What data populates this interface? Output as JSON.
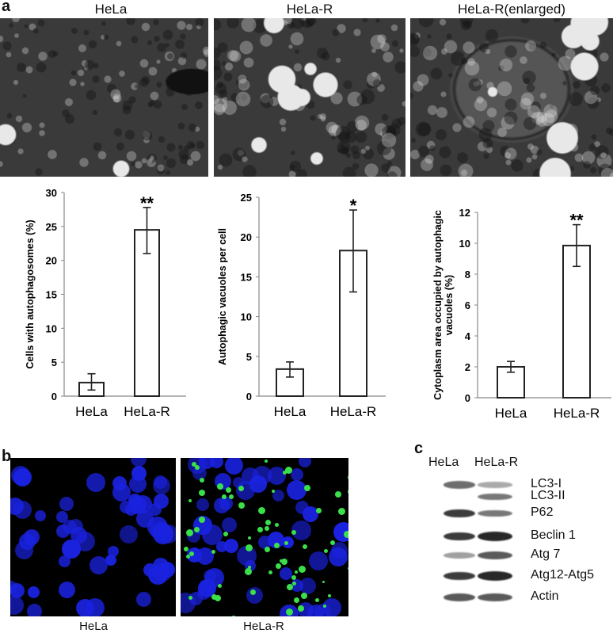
{
  "panel_labels": {
    "a": "a",
    "b": "b",
    "c": "c"
  },
  "panel_a": {
    "micrograph_titles": [
      "HeLa",
      "HeLa-R",
      "HeLa-R(enlarged)"
    ]
  },
  "chart_data": [
    {
      "type": "bar",
      "categories": [
        "HeLa",
        "HeLa-R"
      ],
      "values": [
        2.0,
        24.5
      ],
      "error_low": [
        0.9,
        21.0
      ],
      "error_high": [
        3.3,
        27.8
      ],
      "annotations": [
        "",
        "**"
      ],
      "ylabel": "Cells with autophagosomes (%)",
      "ylim": [
        0,
        30
      ],
      "yticks": [
        0,
        5,
        10,
        15,
        20,
        25,
        30
      ],
      "grid": false
    },
    {
      "type": "bar",
      "categories": [
        "HeLa",
        "HeLa-R"
      ],
      "values": [
        3.4,
        18.3
      ],
      "error_low": [
        2.4,
        13.1
      ],
      "error_high": [
        4.3,
        23.4
      ],
      "annotations": [
        "",
        "*"
      ],
      "ylabel": "Autophagic vacuoles per cell",
      "ylim": [
        0,
        25
      ],
      "yticks": [
        0,
        5,
        10,
        15,
        20,
        25
      ],
      "grid": false
    },
    {
      "type": "bar",
      "categories": [
        "HeLa",
        "HeLa-R"
      ],
      "values": [
        2.0,
        9.85
      ],
      "error_low": [
        1.65,
        8.5
      ],
      "error_high": [
        2.35,
        11.2
      ],
      "annotations": [
        "",
        "**"
      ],
      "ylabel": "Cytoplasm area occupied by autophagic vacuoles (%)",
      "ylabel_lines": [
        "Cytoplasm area occupied by autophagic",
        "vacuoles (%)"
      ],
      "ylim": [
        0,
        12
      ],
      "yticks": [
        0,
        2,
        4,
        6,
        8,
        10,
        12
      ],
      "grid": false
    }
  ],
  "panel_b": {
    "image_labels": [
      "HeLa",
      "HeLa-R"
    ],
    "colors": {
      "nuclei": "#1a22e0",
      "autophagosome": "#39e04a"
    }
  },
  "panel_c": {
    "lane_labels": [
      "HeLa",
      "HeLa-R"
    ],
    "bands": [
      {
        "name": "LC3-I",
        "intensity": [
          0.6,
          0.3
        ]
      },
      {
        "name": "LC3-II",
        "intensity": [
          0.0,
          0.55
        ]
      },
      {
        "name": "P62",
        "intensity": [
          0.85,
          0.55
        ]
      },
      {
        "name": "Beclin 1",
        "intensity": [
          0.85,
          0.95
        ]
      },
      {
        "name": "Atg 7",
        "intensity": [
          0.35,
          0.7
        ]
      },
      {
        "name": "Atg12-Atg5",
        "intensity": [
          0.85,
          0.95
        ]
      },
      {
        "name": "Actin",
        "intensity": [
          0.7,
          0.7
        ]
      }
    ]
  }
}
